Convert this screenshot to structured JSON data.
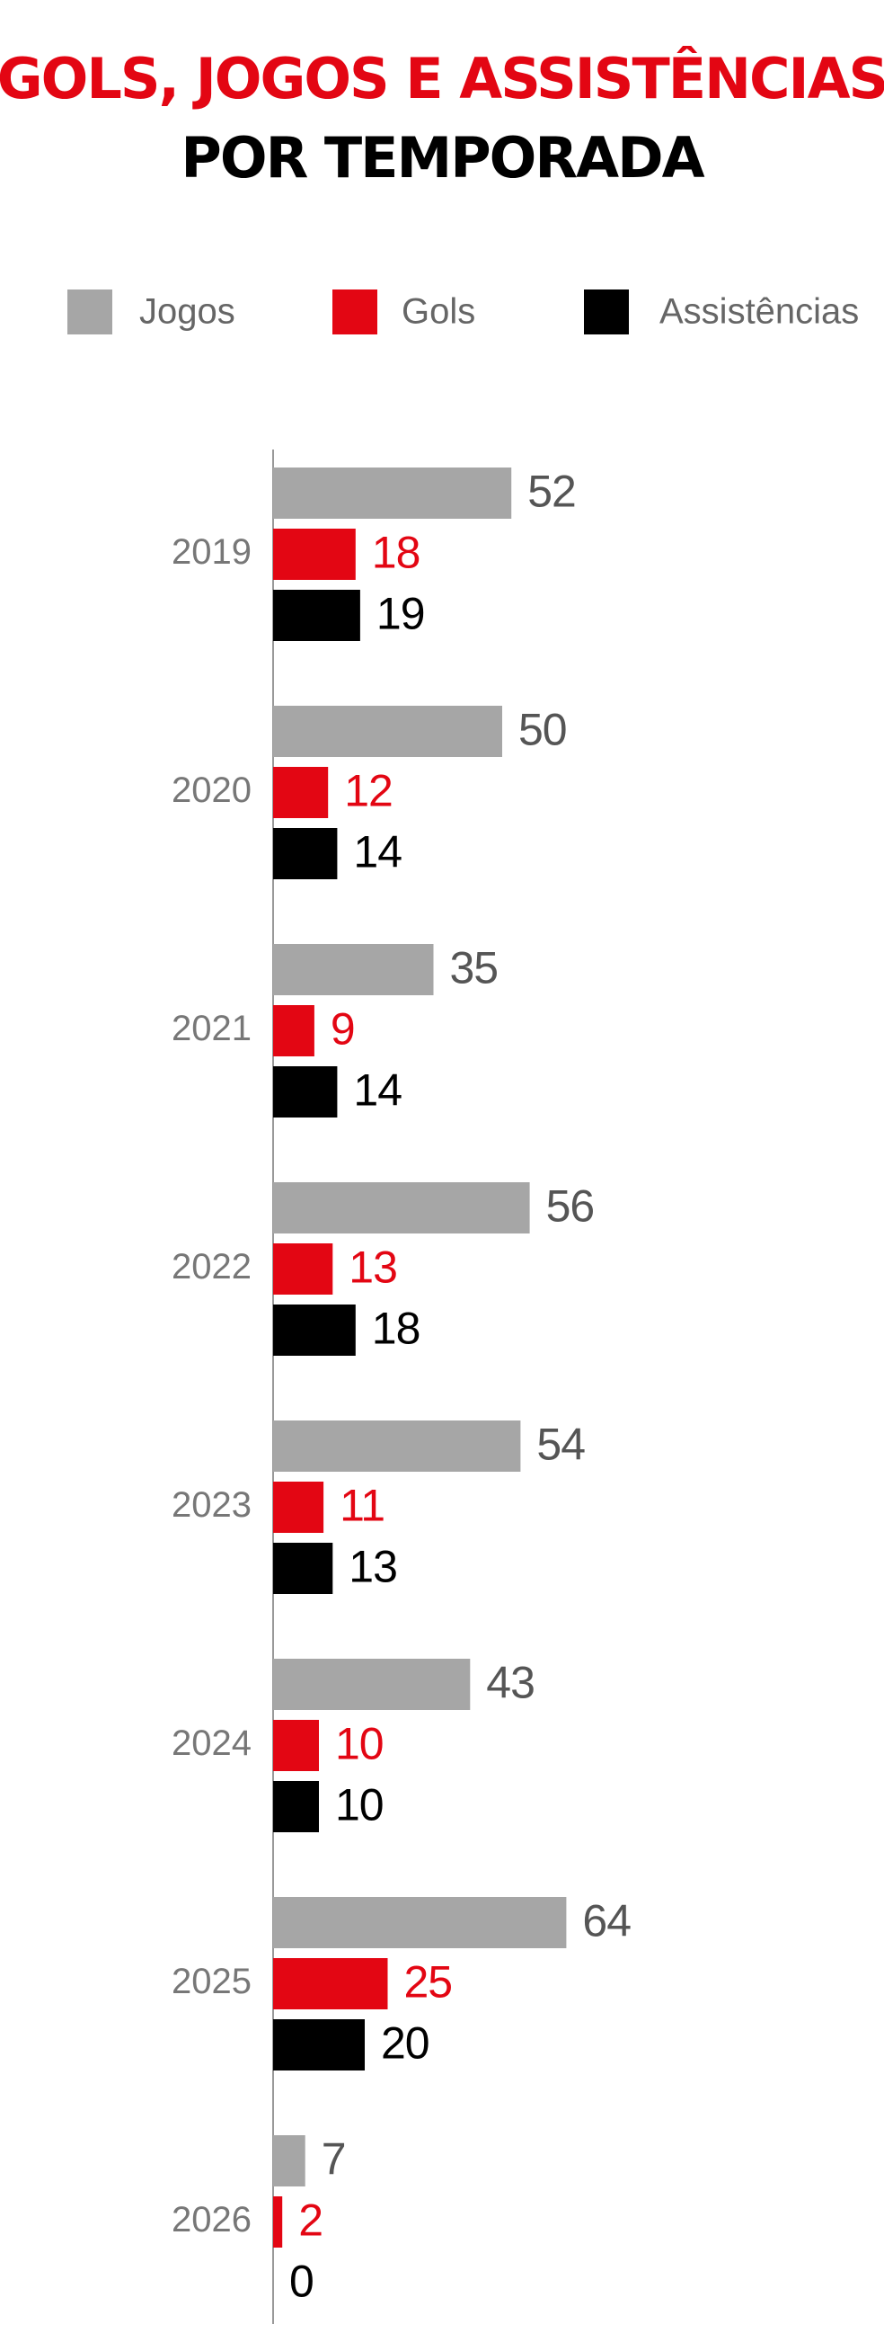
{
  "chart_data": {
    "type": "bar",
    "orientation": "horizontal",
    "title": "GOLS, JOGOS E ASSISTÊNCIAS",
    "subtitle": "POR TEMPORADA",
    "categories": [
      "2019",
      "2020",
      "2021",
      "2022",
      "2023",
      "2024",
      "2025",
      "2026"
    ],
    "series": [
      {
        "name": "Jogos",
        "color": "#a6a6a6",
        "values": [
          52,
          50,
          35,
          56,
          54,
          43,
          64,
          7
        ]
      },
      {
        "name": "Gols",
        "color": "#e30613",
        "values": [
          18,
          12,
          9,
          13,
          11,
          10,
          25,
          2
        ]
      },
      {
        "name": "Assistências",
        "color": "#000000",
        "values": [
          19,
          14,
          14,
          18,
          13,
          10,
          20,
          0
        ]
      }
    ]
  }
}
